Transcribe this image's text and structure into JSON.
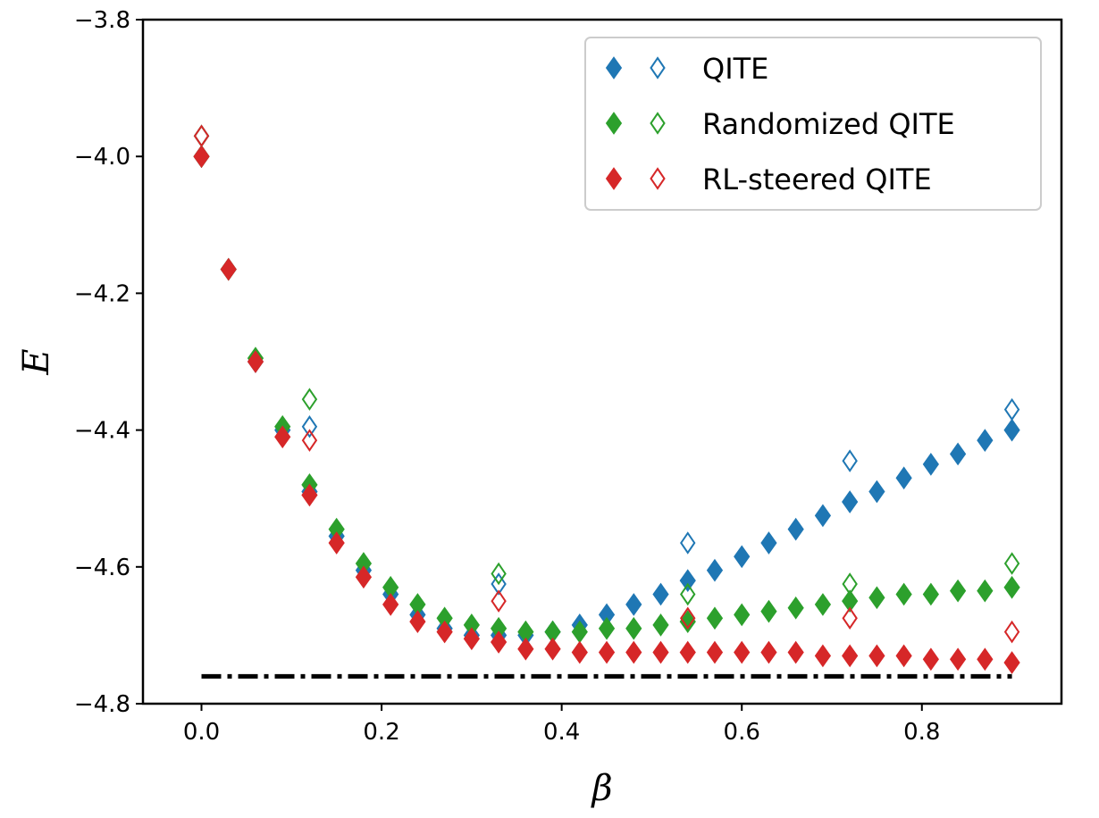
{
  "chart_data": {
    "type": "scatter",
    "xlabel": "β",
    "ylabel": "E",
    "xlim": [
      -0.065,
      0.955
    ],
    "ylim": [
      -4.8,
      -3.8
    ],
    "xticks": [
      "0.0",
      "0.2",
      "0.4",
      "0.6",
      "0.8"
    ],
    "xtick_values": [
      0.0,
      0.2,
      0.4,
      0.6,
      0.8
    ],
    "yticks": [
      "−3.8",
      "−4.0",
      "−4.2",
      "−4.4",
      "−4.6",
      "−4.8"
    ],
    "ytick_values": [
      -3.8,
      -4.0,
      -4.2,
      -4.4,
      -4.6,
      -4.8
    ],
    "grid": false,
    "legend_position": "top-right",
    "reference_line": {
      "style": "dash-dot",
      "color": "#000000",
      "y": -4.76,
      "x": [
        0.0,
        0.9
      ]
    },
    "series": [
      {
        "name": "QITE",
        "color": "#1f77b4",
        "filled": {
          "x": [
            0.0,
            0.03,
            0.06,
            0.09,
            0.12,
            0.15,
            0.18,
            0.21,
            0.24,
            0.27,
            0.3,
            0.33,
            0.36,
            0.39,
            0.42,
            0.45,
            0.48,
            0.51,
            0.54,
            0.57,
            0.6,
            0.63,
            0.66,
            0.69,
            0.72,
            0.75,
            0.78,
            0.81,
            0.84,
            0.87,
            0.9
          ],
          "y": [
            -4.0,
            -4.165,
            -4.3,
            -4.4,
            -4.49,
            -4.555,
            -4.605,
            -4.64,
            -4.67,
            -4.69,
            -4.7,
            -4.7,
            -4.7,
            -4.695,
            -4.685,
            -4.67,
            -4.655,
            -4.64,
            -4.62,
            -4.605,
            -4.585,
            -4.565,
            -4.545,
            -4.525,
            -4.505,
            -4.49,
            -4.47,
            -4.45,
            -4.435,
            -4.415,
            -4.4
          ]
        },
        "hollow": {
          "x": [
            0.0,
            0.12,
            0.33,
            0.54,
            0.72,
            0.9
          ],
          "y": [
            -3.97,
            -4.395,
            -4.625,
            -4.565,
            -4.445,
            -4.37
          ]
        }
      },
      {
        "name": "Randomized QITE",
        "color": "#2ca02c",
        "filled": {
          "x": [
            0.0,
            0.03,
            0.06,
            0.09,
            0.12,
            0.15,
            0.18,
            0.21,
            0.24,
            0.27,
            0.3,
            0.33,
            0.36,
            0.39,
            0.42,
            0.45,
            0.48,
            0.51,
            0.54,
            0.57,
            0.6,
            0.63,
            0.66,
            0.69,
            0.72,
            0.75,
            0.78,
            0.81,
            0.84,
            0.87,
            0.9
          ],
          "y": [
            -4.0,
            -4.165,
            -4.295,
            -4.395,
            -4.48,
            -4.545,
            -4.595,
            -4.63,
            -4.655,
            -4.675,
            -4.685,
            -4.69,
            -4.695,
            -4.695,
            -4.695,
            -4.69,
            -4.69,
            -4.685,
            -4.68,
            -4.675,
            -4.67,
            -4.665,
            -4.66,
            -4.655,
            -4.65,
            -4.645,
            -4.64,
            -4.64,
            -4.635,
            -4.635,
            -4.63
          ]
        },
        "hollow": {
          "x": [
            0.0,
            0.12,
            0.33,
            0.54,
            0.72,
            0.9
          ],
          "y": [
            -3.97,
            -4.355,
            -4.61,
            -4.64,
            -4.625,
            -4.595
          ]
        }
      },
      {
        "name": "RL-steered QITE",
        "color": "#d62728",
        "filled": {
          "x": [
            0.0,
            0.03,
            0.06,
            0.09,
            0.12,
            0.15,
            0.18,
            0.21,
            0.24,
            0.27,
            0.3,
            0.33,
            0.36,
            0.39,
            0.42,
            0.45,
            0.48,
            0.51,
            0.54,
            0.57,
            0.6,
            0.63,
            0.66,
            0.69,
            0.72,
            0.75,
            0.78,
            0.81,
            0.84,
            0.87,
            0.9
          ],
          "y": [
            -4.0,
            -4.165,
            -4.3,
            -4.41,
            -4.495,
            -4.565,
            -4.615,
            -4.655,
            -4.68,
            -4.695,
            -4.705,
            -4.71,
            -4.72,
            -4.72,
            -4.725,
            -4.725,
            -4.725,
            -4.725,
            -4.725,
            -4.725,
            -4.725,
            -4.725,
            -4.725,
            -4.73,
            -4.73,
            -4.73,
            -4.73,
            -4.735,
            -4.735,
            -4.735,
            -4.74
          ]
        },
        "hollow": {
          "x": [
            0.0,
            0.12,
            0.33,
            0.54,
            0.72,
            0.9
          ],
          "y": [
            -3.97,
            -4.415,
            -4.65,
            -4.675,
            -4.675,
            -4.695
          ]
        }
      }
    ]
  }
}
